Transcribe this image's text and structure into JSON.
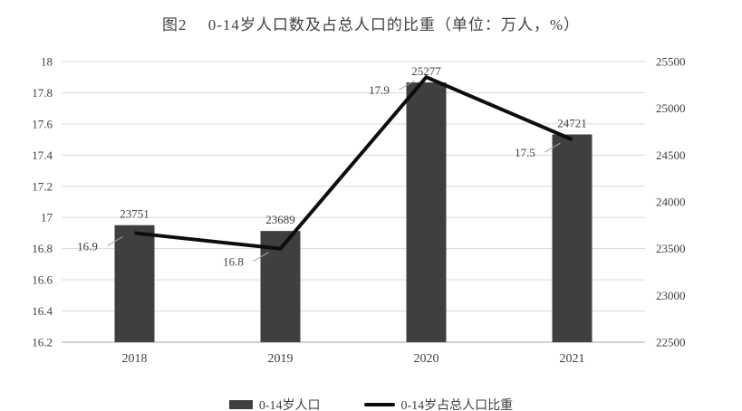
{
  "title": "图2　 0-14岁人口数及占总人口的比重（单位：万人，%）",
  "chart_data": {
    "type": "bar",
    "subtype": "bar+line combo",
    "categories": [
      "2018",
      "2019",
      "2020",
      "2021"
    ],
    "series": [
      {
        "name": "0-14岁人口",
        "type": "bar",
        "axis": "right",
        "values": [
          23751,
          23689,
          25277,
          24721
        ],
        "color": "#3f3f3f"
      },
      {
        "name": "0-14岁占总人口比重",
        "type": "line",
        "axis": "left",
        "values": [
          16.9,
          16.8,
          17.9,
          17.5
        ],
        "color": "#0d0d0d"
      }
    ],
    "left_axis": {
      "min": 16.2,
      "max": 18,
      "step": 0.2,
      "ticks": [
        "16.2",
        "16.4",
        "16.6",
        "16.8",
        "17",
        "17.2",
        "17.4",
        "17.6",
        "17.8",
        "18"
      ]
    },
    "right_axis": {
      "min": 22500,
      "max": 25500,
      "step": 500,
      "ticks": [
        "22500",
        "23000",
        "23500",
        "24000",
        "24500",
        "25000",
        "25500"
      ]
    },
    "grid": true,
    "legend_position": "bottom",
    "colors": {
      "gridline": "#d9d9d9",
      "axis_line": "#a6a6a6",
      "label_text": "#404040",
      "leader": "#a6a6a6"
    }
  }
}
